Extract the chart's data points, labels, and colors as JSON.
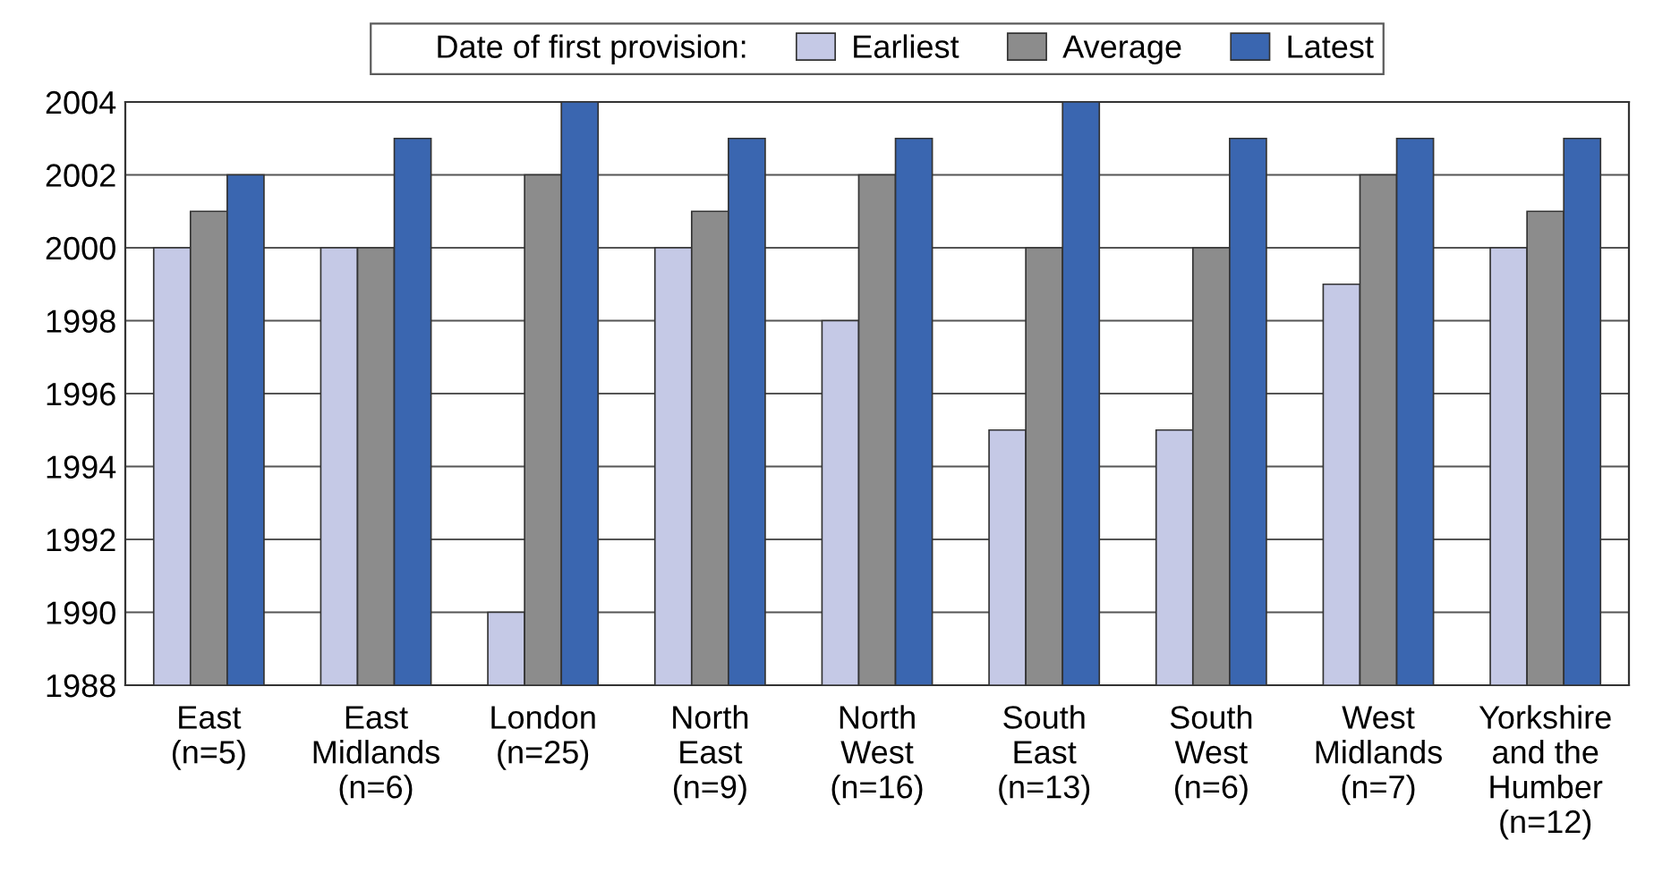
{
  "chart_data": {
    "type": "bar",
    "categories": [
      "East\n(n=5)",
      "East\nMidlands\n(n=6)",
      "London\n(n=25)",
      "North\nEast\n(n=9)",
      "North\nWest\n(n=16)",
      "South\nEast\n(n=13)",
      "South\nWest\n(n=6)",
      "West\nMidlands\n(n=7)",
      "Yorkshire\nand the\nHumber\n(n=12)"
    ],
    "series": [
      {
        "name": "Earliest",
        "color": "#c5c9e6",
        "values": [
          2000,
          2000,
          1990,
          2000,
          1998,
          1995,
          1995,
          1999,
          2000
        ]
      },
      {
        "name": "Average",
        "color": "#8c8c8c",
        "values": [
          2001,
          2000,
          2002,
          2001,
          2002,
          2000,
          2000,
          2002,
          2001
        ]
      },
      {
        "name": "Latest",
        "color": "#3a66b0",
        "values": [
          2002,
          2003,
          2004,
          2003,
          2003,
          2004,
          2003,
          2003,
          2003
        ]
      }
    ],
    "legend_title": "Date of first provision:",
    "ylim": [
      1988,
      2004
    ],
    "yticks": [
      1988,
      1990,
      1992,
      1994,
      1996,
      1998,
      2000,
      2002,
      2004
    ],
    "grid": "y",
    "legend": "top"
  }
}
